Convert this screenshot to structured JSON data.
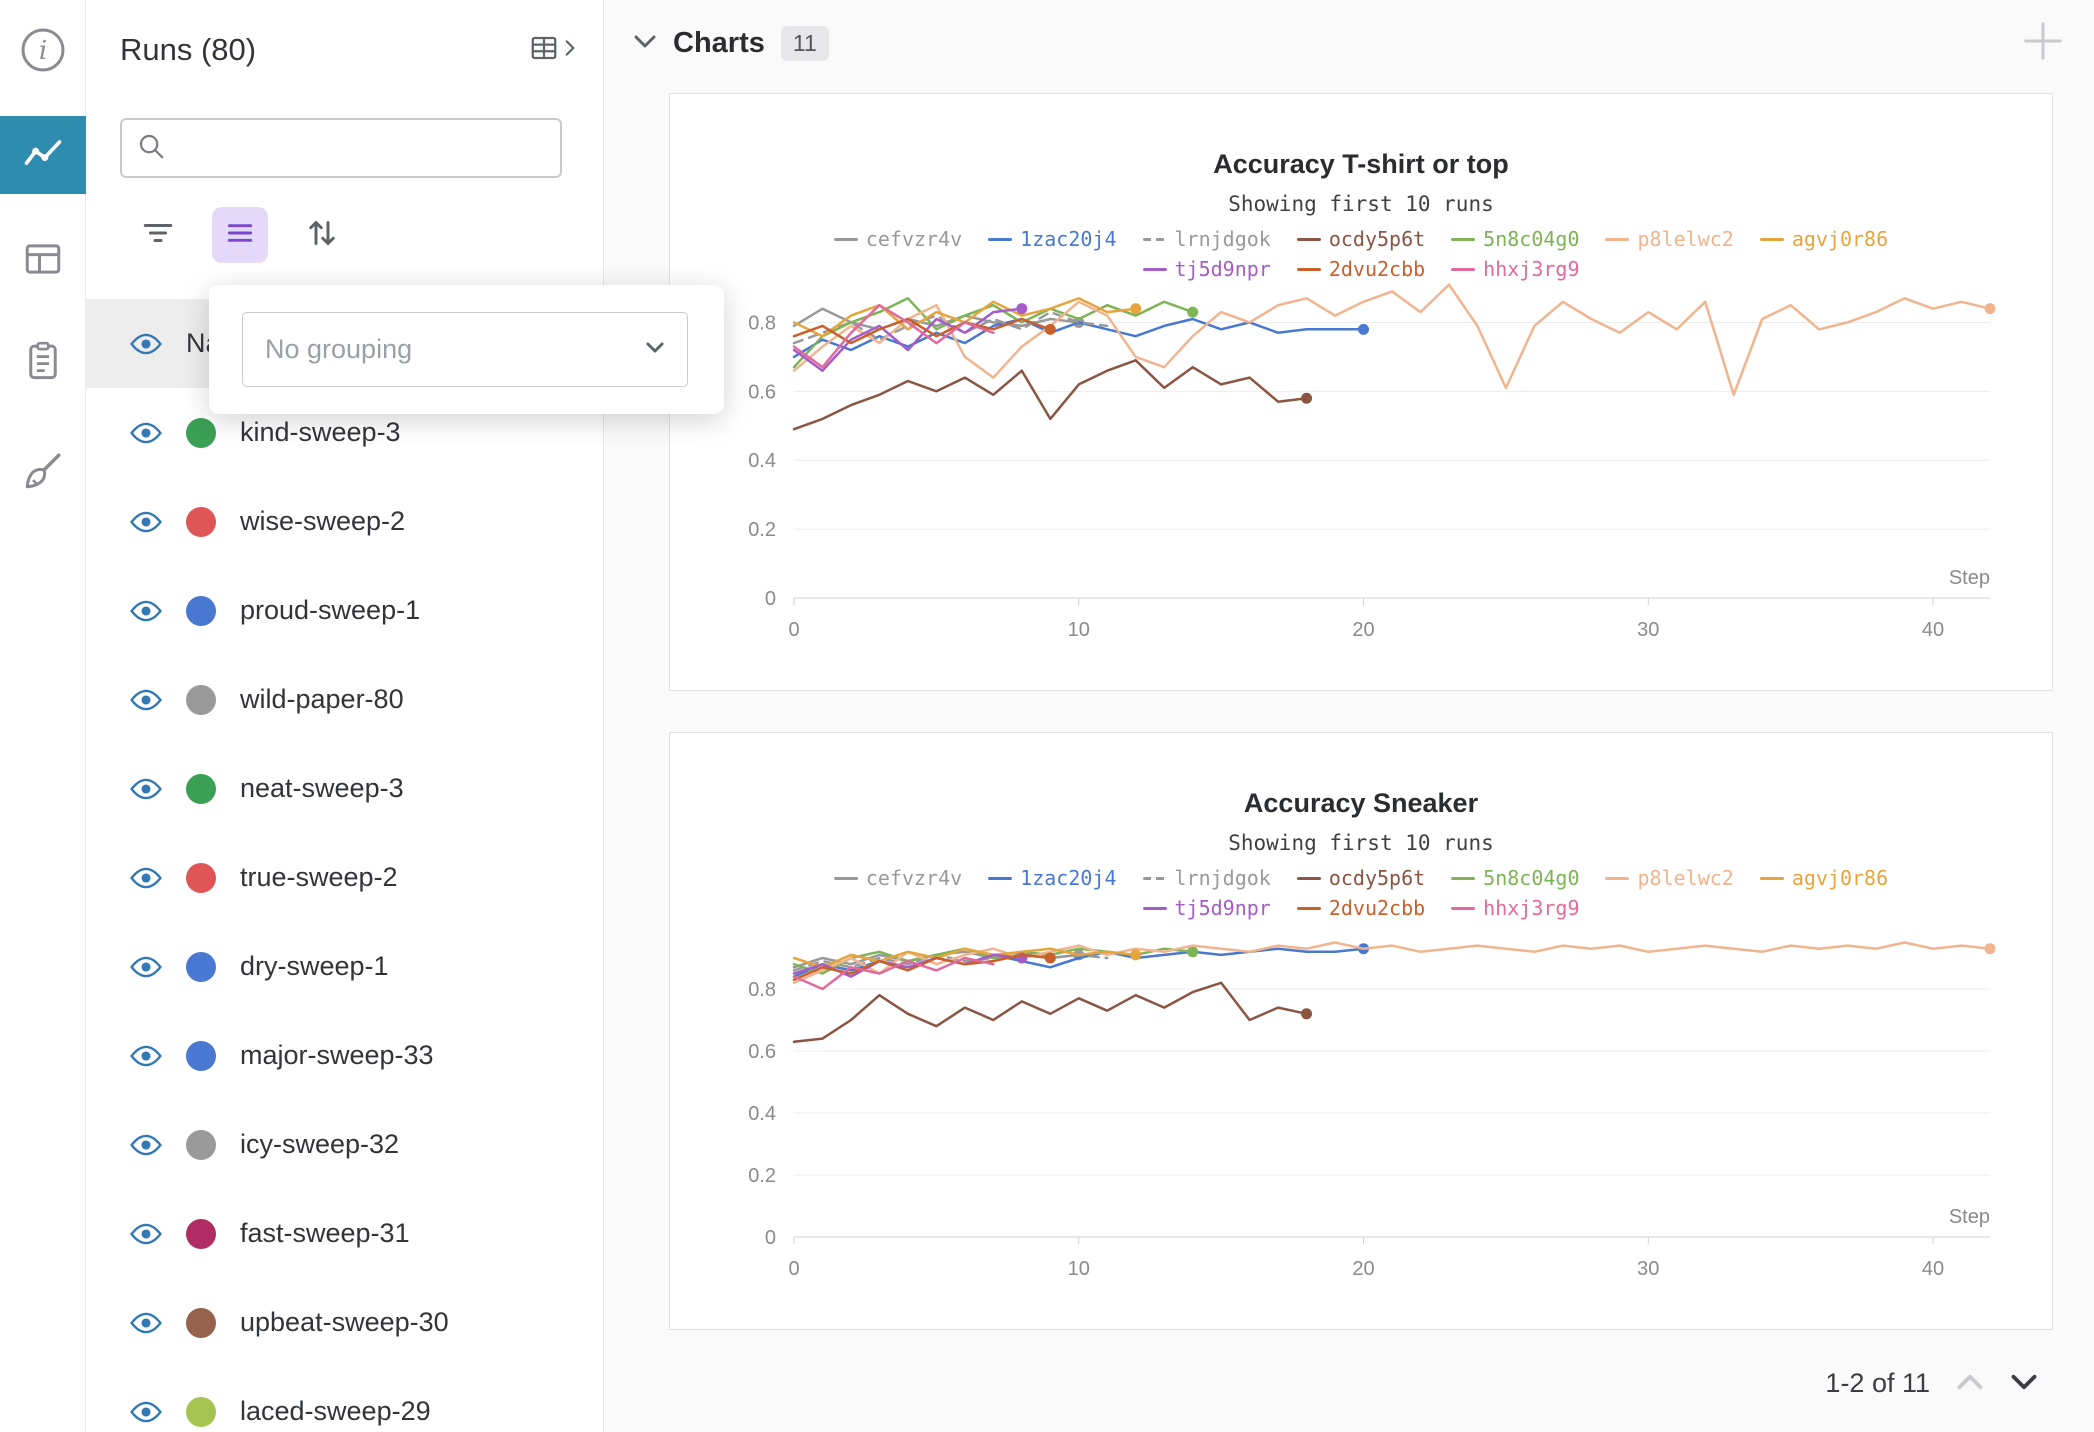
{
  "colors": {
    "accent_nav_selected": "#2e8caf",
    "group_button_bg": "#e4d9f8",
    "group_button_icon": "#7a48cf",
    "eye_icon": "#3178b5",
    "main_background": "#fafafa"
  },
  "nav_rail": {
    "items": [
      {
        "icon": "info-icon",
        "selected": false
      },
      {
        "icon": "line-chart-icon",
        "selected": true
      },
      {
        "icon": "table-icon",
        "selected": false
      },
      {
        "icon": "reports-clipboard-icon",
        "selected": false
      },
      {
        "icon": "sweeps-broom-icon",
        "selected": false
      }
    ]
  },
  "runs_panel": {
    "title": "Runs (80)",
    "search": {
      "value": "",
      "placeholder": ""
    },
    "grouping_popup": {
      "value": "No grouping"
    },
    "header_row": {
      "label": "Name"
    },
    "runs": [
      {
        "name": "kind-sweep-3",
        "color": "#3aa055"
      },
      {
        "name": "wise-sweep-2",
        "color": "#e05555"
      },
      {
        "name": "proud-sweep-1",
        "color": "#4878d0"
      },
      {
        "name": "wild-paper-80",
        "color": "#9a9a9a"
      },
      {
        "name": "neat-sweep-3",
        "color": "#3aa055"
      },
      {
        "name": "true-sweep-2",
        "color": "#e05555"
      },
      {
        "name": "dry-sweep-1",
        "color": "#4878d0"
      },
      {
        "name": "major-sweep-33",
        "color": "#4878d0"
      },
      {
        "name": "icy-sweep-32",
        "color": "#9a9a9a"
      },
      {
        "name": "fast-sweep-31",
        "color": "#b02d63"
      },
      {
        "name": "upbeat-sweep-30",
        "color": "#96614d"
      },
      {
        "name": "laced-sweep-29",
        "color": "#a6c34f"
      }
    ]
  },
  "main": {
    "section": {
      "title": "Charts",
      "count": "11"
    },
    "pagination": {
      "label": "1-2 of 11"
    }
  },
  "chart_data": [
    {
      "type": "line",
      "title": "Accuracy T-shirt or top",
      "subtitle": "Showing first 10 runs",
      "xlabel": "Step",
      "xlim": [
        0,
        42
      ],
      "ylim": [
        0,
        0.9
      ],
      "yticks": [
        0,
        0.2,
        0.4,
        0.6,
        0.8
      ],
      "xticks": [
        0,
        10,
        20,
        30,
        40
      ],
      "legend_position": "top-center",
      "grid": true,
      "series": [
        {
          "name": "cefvzr4v",
          "color": "#999999",
          "dashed": false,
          "end_dot": true,
          "y": [
            0.79,
            0.84,
            0.8,
            0.78,
            0.81,
            0.79,
            0.82,
            0.8,
            0.79,
            0.81,
            0.8
          ]
        },
        {
          "name": "1zac20j4",
          "color": "#4878d0",
          "dashed": false,
          "end_dot": true,
          "y": [
            0.7,
            0.75,
            0.72,
            0.76,
            0.73,
            0.77,
            0.74,
            0.79,
            0.81,
            0.77,
            0.8,
            0.78,
            0.76,
            0.79,
            0.81,
            0.78,
            0.8,
            0.77,
            0.78,
            0.78,
            0.78
          ]
        },
        {
          "name": "lrnjdgok",
          "color": "#999999",
          "dashed": true,
          "end_dot": false,
          "y": [
            0.74,
            0.77,
            0.8,
            0.75,
            0.79,
            0.82,
            0.77,
            0.81,
            0.78,
            0.83,
            0.8,
            0.79
          ]
        },
        {
          "name": "ocdy5p6t",
          "color": "#8a5542",
          "dashed": false,
          "end_dot": true,
          "y": [
            0.49,
            0.52,
            0.56,
            0.59,
            0.63,
            0.6,
            0.64,
            0.59,
            0.66,
            0.52,
            0.62,
            0.66,
            0.69,
            0.61,
            0.67,
            0.62,
            0.64,
            0.57,
            0.58
          ]
        },
        {
          "name": "5n8c04g0",
          "color": "#7eb356",
          "dashed": false,
          "end_dot": true,
          "y": [
            0.67,
            0.76,
            0.8,
            0.83,
            0.87,
            0.78,
            0.82,
            0.85,
            0.8,
            0.84,
            0.81,
            0.85,
            0.82,
            0.86,
            0.83
          ]
        },
        {
          "name": "p8lelwc2",
          "color": "#f0b48e",
          "dashed": false,
          "end_dot": true,
          "y": [
            0.66,
            0.73,
            0.79,
            0.74,
            0.81,
            0.85,
            0.7,
            0.64,
            0.73,
            0.79,
            0.86,
            0.82,
            0.7,
            0.67,
            0.76,
            0.83,
            0.8,
            0.85,
            0.87,
            0.82,
            0.86,
            0.89,
            0.83,
            0.91,
            0.79,
            0.61,
            0.79,
            0.86,
            0.81,
            0.77,
            0.83,
            0.78,
            0.86,
            0.59,
            0.81,
            0.85,
            0.78,
            0.8,
            0.83,
            0.87,
            0.84,
            0.86,
            0.84
          ]
        },
        {
          "name": "agvj0r86",
          "color": "#e6a53c",
          "dashed": false,
          "end_dot": true,
          "y": [
            0.8,
            0.76,
            0.82,
            0.85,
            0.78,
            0.83,
            0.8,
            0.86,
            0.82,
            0.84,
            0.87,
            0.83,
            0.84
          ]
        },
        {
          "name": "tj5d9npr",
          "color": "#a45cc8",
          "dashed": false,
          "end_dot": true,
          "y": [
            0.72,
            0.66,
            0.75,
            0.79,
            0.72,
            0.81,
            0.77,
            0.83,
            0.84
          ]
        },
        {
          "name": "2dvu2cbb",
          "color": "#c8602c",
          "dashed": false,
          "end_dot": true,
          "y": [
            0.76,
            0.79,
            0.74,
            0.78,
            0.81,
            0.76,
            0.8,
            0.78,
            0.81,
            0.78
          ]
        },
        {
          "name": "hhxj3rg9",
          "color": "#e0699e",
          "dashed": false,
          "end_dot": false,
          "y": [
            0.73,
            0.67,
            0.77,
            0.85,
            0.8,
            0.74,
            0.8,
            0.77
          ]
        }
      ]
    },
    {
      "type": "line",
      "title": "Accuracy Sneaker",
      "subtitle": "Showing first 10 runs",
      "xlabel": "Step",
      "xlim": [
        0,
        42
      ],
      "ylim": [
        0,
        1.0
      ],
      "yticks": [
        0,
        0.2,
        0.4,
        0.6,
        0.8
      ],
      "xticks": [
        0,
        10,
        20,
        30,
        40
      ],
      "legend_position": "top-center",
      "grid": true,
      "series": [
        {
          "name": "cefvzr4v",
          "color": "#999999",
          "dashed": false,
          "end_dot": true,
          "y": [
            0.87,
            0.9,
            0.88,
            0.91,
            0.89,
            0.91,
            0.92,
            0.9,
            0.91,
            0.9,
            0.91
          ]
        },
        {
          "name": "1zac20j4",
          "color": "#4878d0",
          "dashed": false,
          "end_dot": true,
          "y": [
            0.84,
            0.88,
            0.86,
            0.89,
            0.87,
            0.9,
            0.88,
            0.91,
            0.89,
            0.87,
            0.9,
            0.92,
            0.9,
            0.91,
            0.92,
            0.91,
            0.92,
            0.93,
            0.92,
            0.92,
            0.93
          ]
        },
        {
          "name": "lrnjdgok",
          "color": "#999999",
          "dashed": true,
          "end_dot": false,
          "y": [
            0.86,
            0.89,
            0.87,
            0.9,
            0.88,
            0.91,
            0.89,
            0.9,
            0.92,
            0.9,
            0.91,
            0.9
          ]
        },
        {
          "name": "ocdy5p6t",
          "color": "#8a5542",
          "dashed": false,
          "end_dot": true,
          "y": [
            0.63,
            0.64,
            0.7,
            0.78,
            0.72,
            0.68,
            0.74,
            0.7,
            0.76,
            0.72,
            0.77,
            0.73,
            0.78,
            0.74,
            0.79,
            0.82,
            0.7,
            0.74,
            0.72
          ]
        },
        {
          "name": "5n8c04g0",
          "color": "#7eb356",
          "dashed": false,
          "end_dot": true,
          "y": [
            0.88,
            0.85,
            0.9,
            0.92,
            0.89,
            0.91,
            0.93,
            0.9,
            0.92,
            0.91,
            0.93,
            0.92,
            0.91,
            0.93,
            0.92
          ]
        },
        {
          "name": "p8lelwc2",
          "color": "#f0b48e",
          "dashed": false,
          "end_dot": true,
          "y": [
            0.82,
            0.86,
            0.9,
            0.85,
            0.92,
            0.88,
            0.91,
            0.93,
            0.9,
            0.92,
            0.94,
            0.91,
            0.93,
            0.92,
            0.94,
            0.93,
            0.92,
            0.94,
            0.93,
            0.95,
            0.93,
            0.94,
            0.92,
            0.93,
            0.94,
            0.93,
            0.92,
            0.94,
            0.93,
            0.94,
            0.92,
            0.93,
            0.94,
            0.93,
            0.92,
            0.94,
            0.93,
            0.94,
            0.93,
            0.95,
            0.93,
            0.94,
            0.93
          ]
        },
        {
          "name": "agvj0r86",
          "color": "#e6a53c",
          "dashed": false,
          "end_dot": true,
          "y": [
            0.9,
            0.87,
            0.91,
            0.89,
            0.92,
            0.9,
            0.93,
            0.91,
            0.92,
            0.93,
            0.91,
            0.92,
            0.91
          ]
        },
        {
          "name": "tj5d9npr",
          "color": "#a45cc8",
          "dashed": false,
          "end_dot": true,
          "y": [
            0.85,
            0.88,
            0.84,
            0.89,
            0.87,
            0.9,
            0.88,
            0.91,
            0.9
          ]
        },
        {
          "name": "2dvu2cbb",
          "color": "#c8602c",
          "dashed": false,
          "end_dot": true,
          "y": [
            0.83,
            0.87,
            0.85,
            0.89,
            0.86,
            0.9,
            0.88,
            0.89,
            0.91,
            0.9
          ]
        },
        {
          "name": "hhxj3rg9",
          "color": "#e0699e",
          "dashed": false,
          "end_dot": false,
          "y": [
            0.84,
            0.8,
            0.87,
            0.85,
            0.89,
            0.86,
            0.9,
            0.88
          ]
        }
      ]
    }
  ]
}
